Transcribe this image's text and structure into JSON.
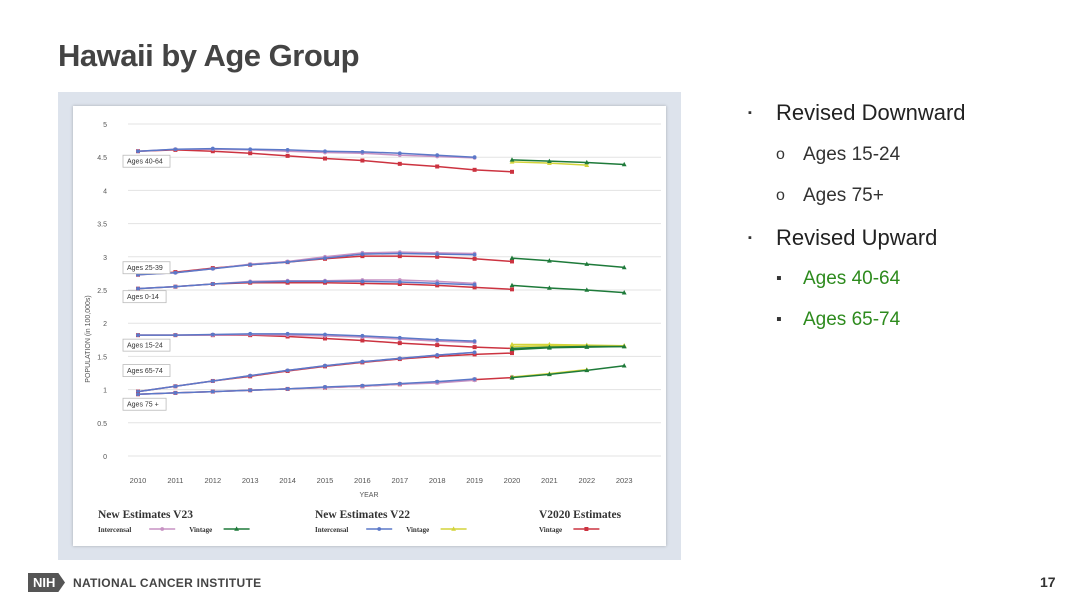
{
  "slide": {
    "title": "Hawaii by Age Group",
    "page_number": "17",
    "footer": {
      "logo_text": "NIH",
      "org_name": "NATIONAL CANCER INSTITUTE"
    }
  },
  "bullets": [
    {
      "level": 1,
      "marker": "▪",
      "text": "Revised Downward",
      "color": "#222222"
    },
    {
      "level": 2,
      "marker": "o",
      "text": "Ages 15-24",
      "color": "#333333"
    },
    {
      "level": 2,
      "marker": "o",
      "text": "Ages 75+",
      "color": "#333333"
    },
    {
      "level": 1,
      "marker": "▪",
      "text": "Revised Upward",
      "color": "#222222"
    },
    {
      "level": 2,
      "marker": "▪",
      "text": "Ages 40-64",
      "color": "#2e8b1e"
    },
    {
      "level": 2,
      "marker": "▪",
      "text": "Ages 65-74",
      "color": "#2e8b1e"
    }
  ],
  "chart_data": {
    "type": "line",
    "title": "",
    "xlabel": "YEAR",
    "ylabel": "POPULATION (in 100,000s)",
    "ylim": [
      0,
      5
    ],
    "yticks": [
      "0",
      "0.5",
      "1",
      "1.5",
      "2",
      "2.5",
      "3",
      "3.5",
      "4",
      "4.5",
      "5"
    ],
    "xticks": [
      "2010",
      "2011",
      "2012",
      "2013",
      "2014",
      "2015",
      "2016",
      "2017",
      "2018",
      "2019",
      "2020",
      "2021",
      "2022",
      "2023"
    ],
    "grid": "horizontal",
    "series_styles": [
      {
        "key": "v23_intercensal",
        "color": "#c792c3",
        "marker": "circle"
      },
      {
        "key": "v23_vintage",
        "color": "#1e7a3a",
        "marker": "triangle"
      },
      {
        "key": "v22_intercensal",
        "color": "#5b78c8",
        "marker": "circle"
      },
      {
        "key": "v22_vintage",
        "color": "#d4d43a",
        "marker": "triangle"
      },
      {
        "key": "v2020_vintage",
        "color": "#cc3340",
        "marker": "square"
      }
    ],
    "groups": [
      {
        "label": "Ages 40-64",
        "v23_intercensal": [
          4.59,
          4.62,
          4.62,
          4.61,
          4.59,
          4.57,
          4.56,
          4.53,
          4.51,
          4.49
        ],
        "v22_intercensal": [
          4.59,
          4.62,
          4.63,
          4.62,
          4.61,
          4.59,
          4.58,
          4.56,
          4.53,
          4.5
        ],
        "v2020_vintage": [
          4.59,
          4.61,
          4.59,
          4.56,
          4.52,
          4.48,
          4.45,
          4.4,
          4.36,
          4.31,
          4.28
        ],
        "v23_vintage": [
          4.46,
          4.44,
          4.42,
          4.39
        ],
        "v22_vintage": [
          4.43,
          4.41,
          4.38
        ]
      },
      {
        "label": "Ages 25-39",
        "v23_intercensal": [
          2.73,
          2.76,
          2.82,
          2.89,
          2.93,
          3.0,
          3.06,
          3.07,
          3.06,
          3.05
        ],
        "v22_intercensal": [
          2.73,
          2.76,
          2.82,
          2.88,
          2.92,
          2.98,
          3.04,
          3.05,
          3.04,
          3.03
        ],
        "v2020_vintage": [
          2.73,
          2.77,
          2.83,
          2.88,
          2.92,
          2.97,
          3.01,
          3.01,
          3.0,
          2.97,
          2.93
        ],
        "v23_vintage": [
          2.98,
          2.94,
          2.89,
          2.84
        ],
        "v22_vintage": []
      },
      {
        "label": "Ages 0-14",
        "v23_intercensal": [
          2.52,
          2.55,
          2.59,
          2.63,
          2.64,
          2.64,
          2.65,
          2.65,
          2.63,
          2.6
        ],
        "v22_intercensal": [
          2.52,
          2.55,
          2.59,
          2.62,
          2.63,
          2.63,
          2.63,
          2.62,
          2.6,
          2.58
        ],
        "v2020_vintage": [
          2.52,
          2.55,
          2.59,
          2.61,
          2.61,
          2.61,
          2.6,
          2.59,
          2.57,
          2.54,
          2.51
        ],
        "v23_vintage": [
          2.57,
          2.53,
          2.5,
          2.46
        ],
        "v22_vintage": []
      },
      {
        "label": "Ages 15-24",
        "v23_intercensal": [
          1.82,
          1.82,
          1.82,
          1.83,
          1.82,
          1.81,
          1.79,
          1.76,
          1.73,
          1.71
        ],
        "v22_intercensal": [
          1.82,
          1.82,
          1.83,
          1.84,
          1.84,
          1.83,
          1.81,
          1.78,
          1.75,
          1.73
        ],
        "v2020_vintage": [
          1.82,
          1.82,
          1.82,
          1.82,
          1.8,
          1.77,
          1.74,
          1.7,
          1.67,
          1.64,
          1.62
        ],
        "v23_vintage": [
          1.6,
          1.63,
          1.64,
          1.65
        ],
        "v22_vintage": [
          1.68,
          1.68,
          1.67,
          1.66
        ]
      },
      {
        "label": "Ages 65-74",
        "v23_intercensal": [
          0.97,
          1.05,
          1.13,
          1.21,
          1.29,
          1.36,
          1.42,
          1.47,
          1.52,
          1.56
        ],
        "v22_intercensal": [
          0.97,
          1.05,
          1.13,
          1.21,
          1.29,
          1.36,
          1.42,
          1.47,
          1.52,
          1.56
        ],
        "v2020_vintage": [
          0.97,
          1.05,
          1.13,
          1.2,
          1.28,
          1.35,
          1.41,
          1.46,
          1.5,
          1.53,
          1.55
        ],
        "v23_vintage": [
          1.62,
          1.64,
          1.65,
          1.65
        ],
        "v22_vintage": [
          1.65,
          1.66,
          1.66,
          1.66
        ]
      },
      {
        "label": "Ages 75 +",
        "v23_intercensal": [
          0.93,
          0.95,
          0.97,
          0.99,
          1.01,
          1.03,
          1.05,
          1.08,
          1.1,
          1.14
        ],
        "v22_intercensal": [
          0.93,
          0.95,
          0.97,
          0.99,
          1.01,
          1.04,
          1.06,
          1.09,
          1.12,
          1.16
        ],
        "v2020_vintage": [
          0.93,
          0.95,
          0.97,
          0.99,
          1.01,
          1.03,
          1.05,
          1.08,
          1.11,
          1.15,
          1.18
        ],
        "v23_vintage": [
          1.18,
          1.23,
          1.29,
          1.36
        ],
        "v22_vintage": [
          1.19,
          1.24,
          1.3
        ]
      }
    ],
    "legend": [
      {
        "title": "New Estimates V23",
        "entries": [
          {
            "label": "Intercensal",
            "series": "v23_intercensal"
          },
          {
            "label": "Vintage",
            "series": "v23_vintage"
          }
        ]
      },
      {
        "title": "New Estimates V22",
        "entries": [
          {
            "label": "Intercensal",
            "series": "v22_intercensal"
          },
          {
            "label": "Vintage",
            "series": "v22_vintage"
          }
        ]
      },
      {
        "title": "V2020 Estimates",
        "entries": [
          {
            "label": "Vintage",
            "series": "v2020_vintage"
          }
        ]
      }
    ]
  }
}
